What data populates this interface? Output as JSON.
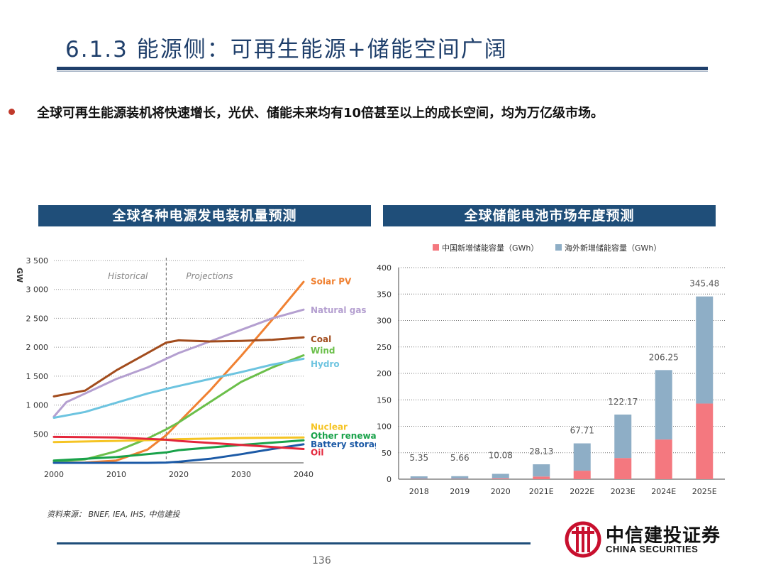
{
  "header": {
    "title": "6.1.3 能源侧：可再生能源+储能空间广阔"
  },
  "bullet": {
    "text": "全球可再生能源装机将快速增长，光伏、储能未来均有10倍甚至以上的成长空间，均为万亿级市场。"
  },
  "colors": {
    "brand_navy": "#1f4e79",
    "title_navy": "#1f3f6b",
    "bullet_red": "#c0392b",
    "china_series": "#f4787f",
    "overseas_series": "#8eaec6",
    "logo_red": "#c8102e"
  },
  "chart_data": [
    {
      "type": "line",
      "panel_title": "全球各种电源发电装机量预测",
      "ylabel": "GW",
      "ylim": [
        0,
        3500
      ],
      "xlim": [
        2000,
        2040
      ],
      "y_ticks": [
        "500",
        "1 000",
        "1 500",
        "2 000",
        "2 500",
        "3 000",
        "3 500"
      ],
      "y_tick_values": [
        500,
        1000,
        1500,
        2000,
        2500,
        3000,
        3500
      ],
      "x_ticks": [
        "2000",
        "2010",
        "2020",
        "2030",
        "2040"
      ],
      "x_tick_values": [
        2000,
        2010,
        2020,
        2030,
        2040
      ],
      "divider_year": 2018,
      "region_labels": {
        "historical": "Historical",
        "projections": "Projections"
      },
      "grid": true,
      "series": [
        {
          "name": "Solar PV",
          "color": "#f08132",
          "label_value": 3150,
          "x": [
            2000,
            2005,
            2010,
            2015,
            2018,
            2020,
            2025,
            2030,
            2035,
            2040
          ],
          "values": [
            1,
            5,
            40,
            230,
            480,
            700,
            1250,
            1850,
            2480,
            3130
          ]
        },
        {
          "name": "Natural gas",
          "color": "#b49fd0",
          "label_value": 2650,
          "x": [
            2000,
            2002,
            2005,
            2010,
            2015,
            2018,
            2020,
            2025,
            2030,
            2035,
            2040
          ],
          "values": [
            800,
            1050,
            1200,
            1450,
            1650,
            1800,
            1900,
            2100,
            2300,
            2500,
            2650
          ]
        },
        {
          "name": "Coal",
          "color": "#a24c1d",
          "label_value": 2150,
          "x": [
            2000,
            2005,
            2010,
            2015,
            2018,
            2020,
            2025,
            2030,
            2035,
            2040
          ],
          "values": [
            1150,
            1250,
            1600,
            1900,
            2080,
            2120,
            2100,
            2110,
            2130,
            2170
          ]
        },
        {
          "name": "Wind",
          "color": "#6bbf4a",
          "label_value": 1950,
          "x": [
            2000,
            2005,
            2010,
            2015,
            2018,
            2020,
            2025,
            2030,
            2035,
            2040
          ],
          "values": [
            20,
            60,
            200,
            420,
            580,
            700,
            1050,
            1400,
            1650,
            1860
          ]
        },
        {
          "name": "Hydro",
          "color": "#6dc4e0",
          "label_value": 1720,
          "x": [
            2000,
            2005,
            2010,
            2015,
            2018,
            2020,
            2025,
            2030,
            2035,
            2040
          ],
          "values": [
            780,
            880,
            1040,
            1200,
            1280,
            1330,
            1450,
            1570,
            1700,
            1800
          ]
        },
        {
          "name": "Nuclear",
          "color": "#f5c424",
          "label_value": 630,
          "x": [
            2000,
            2010,
            2018,
            2020,
            2030,
            2040
          ],
          "values": [
            360,
            380,
            400,
            410,
            430,
            440
          ]
        },
        {
          "name": "Other renewab",
          "color": "#19a24a",
          "label_value": 480,
          "x": [
            2000,
            2010,
            2018,
            2020,
            2030,
            2040
          ],
          "values": [
            40,
            100,
            180,
            220,
            310,
            390
          ]
        },
        {
          "name": "Battery storage",
          "color": "#1c5aa6",
          "label_value": 330,
          "x": [
            2000,
            2015,
            2018,
            2020,
            2025,
            2030,
            2035,
            2040
          ],
          "values": [
            0,
            0,
            5,
            20,
            70,
            150,
            240,
            320
          ]
        },
        {
          "name": "Oil",
          "color": "#e3263b",
          "label_value": 190,
          "x": [
            2000,
            2010,
            2018,
            2020,
            2030,
            2040
          ],
          "values": [
            450,
            440,
            400,
            380,
            310,
            240
          ]
        }
      ]
    },
    {
      "type": "bar",
      "stacked": true,
      "panel_title": "全球储能电池市场年度预测",
      "categories": [
        "2018",
        "2019",
        "2020",
        "2021E",
        "2022E",
        "2023E",
        "2024E",
        "2025E"
      ],
      "series": [
        {
          "name": "中国新增储能容量（GWh）",
          "color": "#f4787f",
          "values": [
            0.6,
            0.6,
            1.6,
            5.0,
            16.0,
            40.0,
            75.0,
            143.0
          ]
        },
        {
          "name": "海外新增储能容量（GWh）",
          "color": "#8eaec6",
          "values": [
            4.75,
            5.06,
            8.48,
            23.13,
            51.71,
            82.17,
            131.25,
            202.48
          ]
        }
      ],
      "total_labels": [
        "5.35",
        "5.66",
        "10.08",
        "28.13",
        "67.71",
        "122.17",
        "206.25",
        "345.48"
      ],
      "totals": [
        5.35,
        5.66,
        10.08,
        28.13,
        67.71,
        122.17,
        206.25,
        345.48
      ],
      "ylim": [
        0,
        400
      ],
      "y_ticks": [
        "0",
        "50",
        "100",
        "150",
        "200",
        "250",
        "300",
        "350",
        "400"
      ],
      "y_tick_values": [
        0,
        50,
        100,
        150,
        200,
        250,
        300,
        350,
        400
      ],
      "legend_position": "top",
      "grid": true
    }
  ],
  "source": {
    "text": "资料来源： BNEF, IEA,  IHS, 中信建投"
  },
  "footer": {
    "page_number": "136",
    "logo_cn": "中信建投证券",
    "logo_en": "CHINA SECURITIES"
  }
}
